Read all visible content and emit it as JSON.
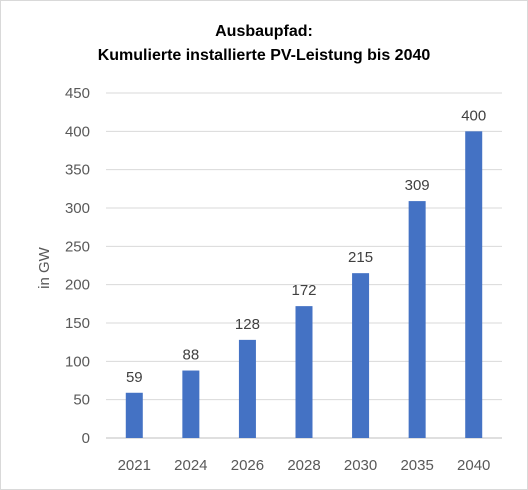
{
  "chart_data": {
    "type": "bar",
    "title_line1": "Ausbaupfad:",
    "title_line2": "Kumulierte installierte PV-Leistung bis 2040",
    "xlabel": "",
    "ylabel": "in  GW",
    "categories": [
      "2021",
      "2024",
      "2026",
      "2028",
      "2030",
      "2035",
      "2040"
    ],
    "values": [
      59,
      88,
      128,
      172,
      215,
      309,
      400
    ],
    "data_labels": [
      "59",
      "88",
      "128",
      "172",
      "215",
      "309",
      "400"
    ],
    "ylim": [
      0,
      450
    ],
    "yticks": [
      "0",
      "50",
      "100",
      "150",
      "200",
      "250",
      "300",
      "350",
      "400",
      "450"
    ],
    "grid": true,
    "legend": "none",
    "bar_color": "#4472c4",
    "grid_color": "#d9d9d9",
    "axis_color": "#bfbfbf"
  }
}
